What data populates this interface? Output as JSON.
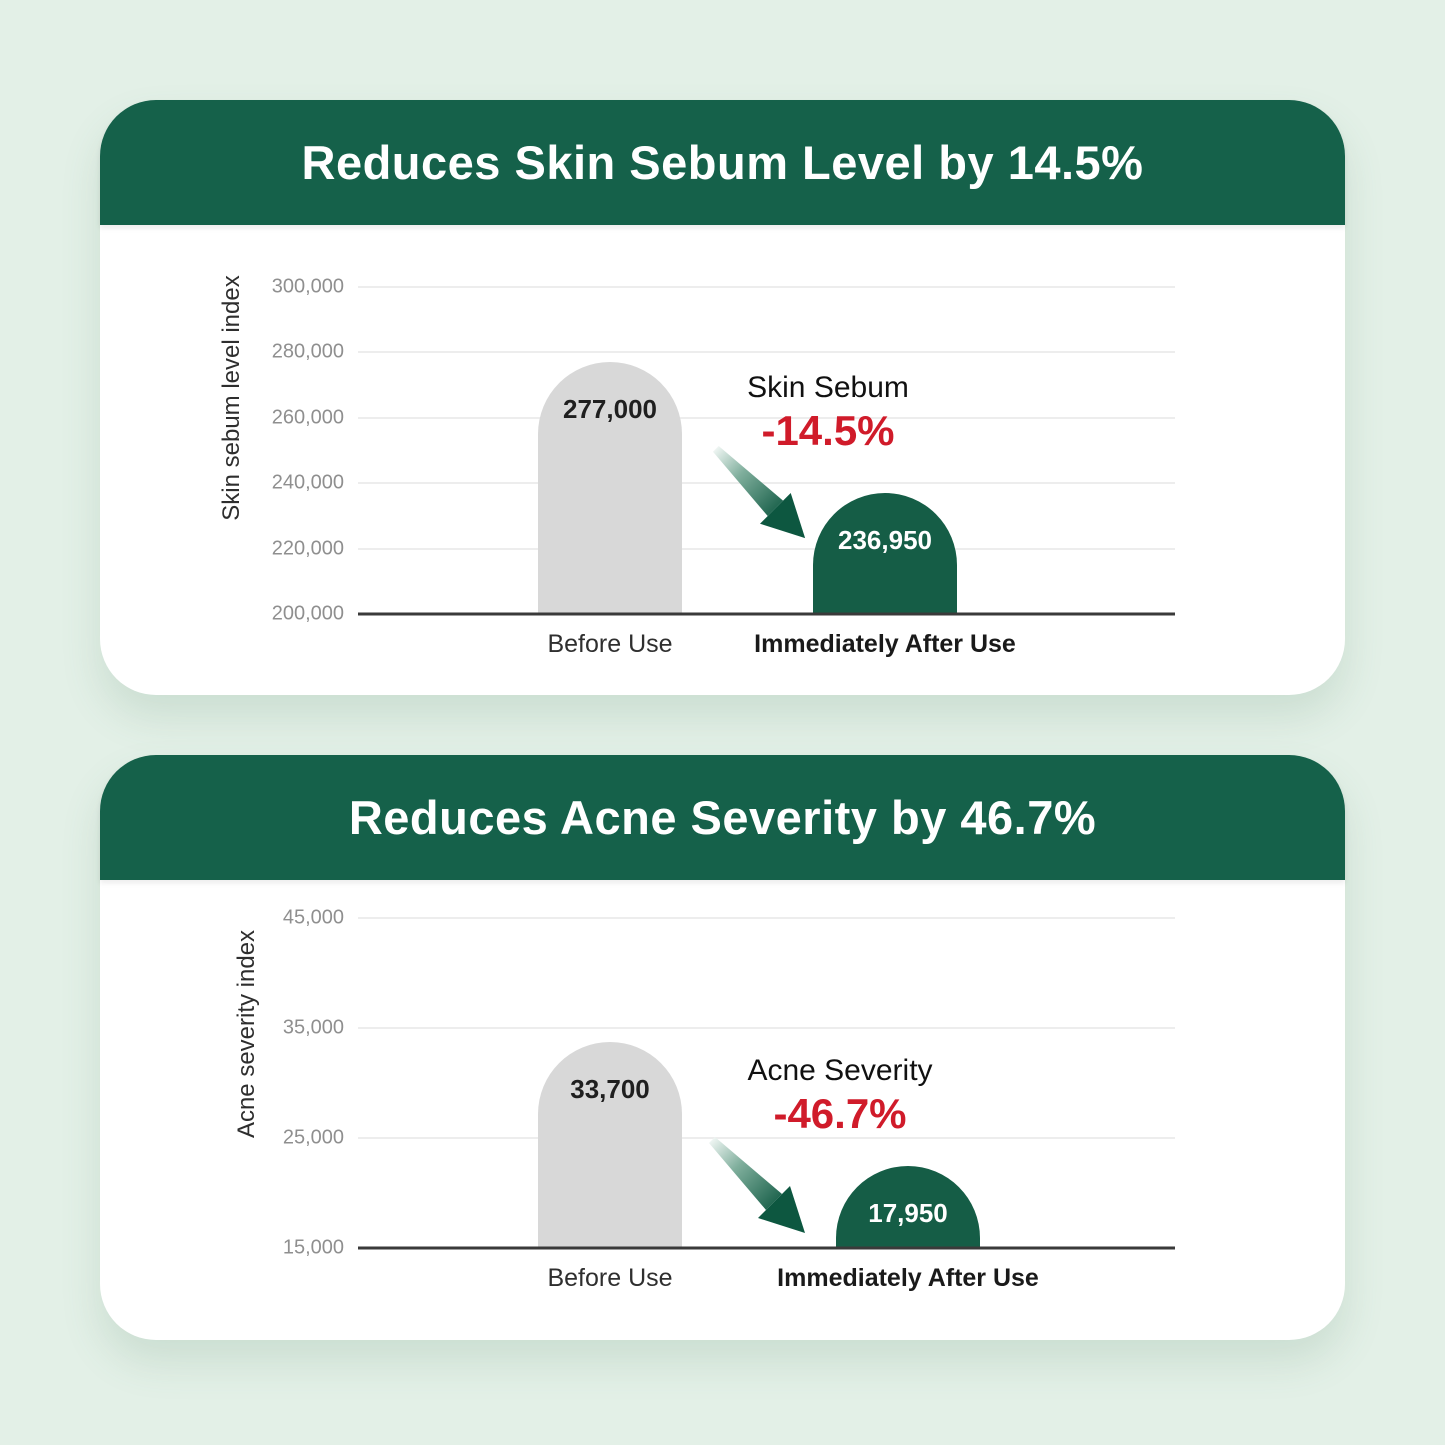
{
  "page_background": "#e3f0e7",
  "colors": {
    "brand_green": "#15614a",
    "bar_green": "#155d46",
    "bar_gray": "#d8d8d8",
    "decrease_red": "#d01b2a",
    "card_white": "#ffffff",
    "axis_dark": "#3a3a3a",
    "gridline_gray": "#ededed"
  },
  "chart_data": [
    {
      "type": "bar",
      "title": "Reduces Skin Sebum Level by 14.5%",
      "ylabel": "Skin sebum level index",
      "ylim": [
        200000,
        300000
      ],
      "yticks": [
        200000,
        220000,
        240000,
        260000,
        280000,
        300000
      ],
      "ytick_labels": [
        "200,000",
        "220,000",
        "240,000",
        "260,000",
        "280,000",
        "300,000"
      ],
      "categories": [
        "Before Use",
        "Immediately After Use"
      ],
      "values": [
        277000,
        236950
      ],
      "value_labels": [
        "277,000",
        "236,950"
      ],
      "bar_colors": [
        "#d8d8d8",
        "#155d46"
      ],
      "value_label_colors": [
        "#1f1f1f",
        "#ffffff"
      ],
      "grid": true,
      "legend": null,
      "annotation": {
        "label": "Skin Sebum",
        "value": "-14.5%"
      }
    },
    {
      "type": "bar",
      "title": "Reduces Acne Severity by 46.7%",
      "ylabel": "Acne severity index",
      "ylim": [
        15000,
        45000
      ],
      "yticks": [
        15000,
        25000,
        35000,
        45000
      ],
      "ytick_labels": [
        "15,000",
        "25,000",
        "35,000",
        "45,000"
      ],
      "categories": [
        "Before Use",
        "Immediately After Use"
      ],
      "values": [
        33700,
        17950
      ],
      "value_labels": [
        "33,700",
        "17,950"
      ],
      "bar_colors": [
        "#d8d8d8",
        "#155d46"
      ],
      "value_label_colors": [
        "#1f1f1f",
        "#ffffff"
      ],
      "grid": true,
      "legend": null,
      "annotation": {
        "label": "Acne Severity",
        "value": "-46.7%"
      }
    }
  ]
}
